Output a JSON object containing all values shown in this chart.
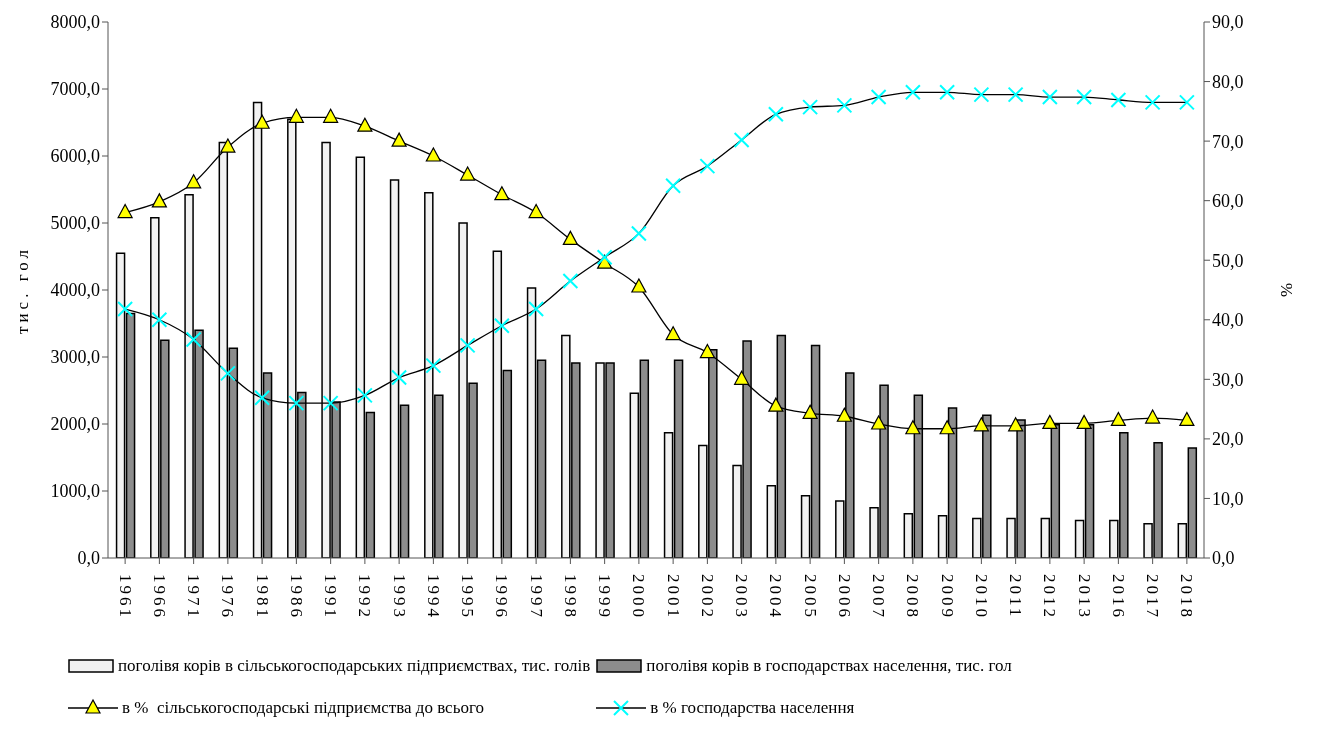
{
  "chart_data": {
    "type": "bar",
    "ylabel": "тис. гол",
    "y2label": "%",
    "categories": [
      "1961",
      "1966",
      "1971",
      "1976",
      "1981",
      "1986",
      "1991",
      "1992",
      "1993",
      "1994",
      "1995",
      "1996",
      "1997",
      "1998",
      "1999",
      "2000",
      "2001",
      "2002",
      "2003",
      "2004",
      "2005",
      "2006",
      "2007",
      "2008",
      "2009",
      "2010",
      "2011",
      "2012",
      "2013",
      "2016",
      "2017",
      "2018"
    ],
    "series": [
      {
        "name": "поголівя корів в сільськогосподарських підприємствах, тис. голів",
        "color": "#f2f2f2",
        "values": [
          4550,
          5080,
          5420,
          6200,
          6800,
          6550,
          6200,
          5980,
          5640,
          5450,
          5000,
          4580,
          4030,
          3320,
          2910,
          2460,
          1870,
          1680,
          1380,
          1080,
          930,
          850,
          750,
          660,
          630,
          590,
          590,
          590,
          560,
          560,
          510,
          510
        ]
      },
      {
        "name": "поголівя корів в господарствах населення, тис. гол",
        "color": "#8c8c8c",
        "values": [
          3650,
          3250,
          3400,
          3130,
          2760,
          2470,
          2330,
          2170,
          2280,
          2430,
          2610,
          2800,
          2950,
          2910,
          2910,
          2950,
          2950,
          3110,
          3240,
          3320,
          3170,
          2760,
          2580,
          2430,
          2240,
          2130,
          2060,
          1990,
          1990,
          1870,
          1720,
          1640
        ]
      },
      {
        "name": "в %  сільськогосподарські підприємства до всього",
        "type": "line",
        "axis": "y2",
        "marker": "triangle",
        "color": "#ffff00",
        "values": [
          58.0,
          59.8,
          63.0,
          69.0,
          73.0,
          74.0,
          74.0,
          72.5,
          70.0,
          67.5,
          64.3,
          61.0,
          58.0,
          53.5,
          49.5,
          45.5,
          37.5,
          34.5,
          30.0,
          25.5,
          24.3,
          23.8,
          22.5,
          21.7,
          21.7,
          22.2,
          22.2,
          22.6,
          22.6,
          23.1,
          23.5,
          23.1
        ]
      },
      {
        "name": "в % господарства населення",
        "type": "line",
        "axis": "y2",
        "marker": "cross",
        "color": "#00ffff",
        "values": [
          41.8,
          40.0,
          36.7,
          31.0,
          26.9,
          26.0,
          26.0,
          27.3,
          30.3,
          32.3,
          35.7,
          39.0,
          41.8,
          46.5,
          50.5,
          54.5,
          62.5,
          65.8,
          70.2,
          74.5,
          75.7,
          76.0,
          77.4,
          78.2,
          78.2,
          77.8,
          77.8,
          77.4,
          77.4,
          76.9,
          76.5,
          76.5
        ]
      }
    ],
    "ylim": [
      0,
      8000
    ],
    "yticks": [
      {
        "value": 0,
        "label": "0,0"
      },
      {
        "value": 1000,
        "label": "1000,0"
      },
      {
        "value": 2000,
        "label": "2000,0"
      },
      {
        "value": 3000,
        "label": "3000,0"
      },
      {
        "value": 4000,
        "label": "4000,0"
      },
      {
        "value": 5000,
        "label": "5000,0"
      },
      {
        "value": 6000,
        "label": "6000,0"
      },
      {
        "value": 7000,
        "label": "7000,0"
      },
      {
        "value": 8000,
        "label": "8000,0"
      }
    ],
    "y2lim": [
      0,
      90
    ],
    "y2ticks": [
      {
        "value": 0,
        "label": "0,0"
      },
      {
        "value": 10,
        "label": "10,0"
      },
      {
        "value": 20,
        "label": "20,0"
      },
      {
        "value": 30,
        "label": "30,0"
      },
      {
        "value": 40,
        "label": "40,0"
      },
      {
        "value": 50,
        "label": "50,0"
      },
      {
        "value": 60,
        "label": "60,0"
      },
      {
        "value": 70,
        "label": "70,0"
      },
      {
        "value": 80,
        "label": "80,0"
      },
      {
        "value": 90,
        "label": "90,0"
      }
    ],
    "grid": false,
    "legend": "bottom"
  }
}
